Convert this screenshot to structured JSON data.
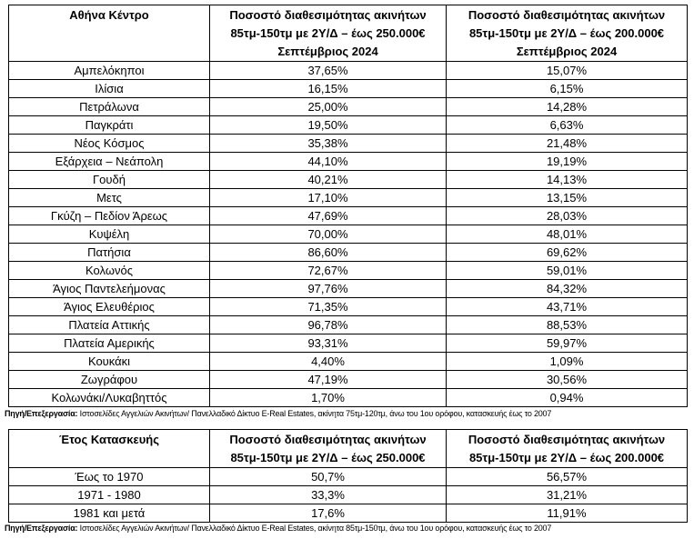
{
  "table1": {
    "headers": [
      "Αθήνα Κέντρο",
      "Ποσοστό διαθεσιμότητας ακινήτων 85τμ-150τμ με 2Υ/Δ – έως 250.000€ Σεπτέμβριος 2024",
      "Ποσοστό διαθεσιμότητας ακινήτων 85τμ-150τμ με 2Υ/Δ – έως 200.000€ Σεπτέμβριος 2024"
    ],
    "rows": [
      [
        "Αμπελόκηποι",
        "37,65%",
        "15,07%"
      ],
      [
        "Ιλίσια",
        "16,15%",
        "6,15%"
      ],
      [
        "Πετράλωνα",
        "25,00%",
        "14,28%"
      ],
      [
        "Παγκράτι",
        "19,50%",
        "6,63%"
      ],
      [
        "Νέος Κόσμος",
        "35,38%",
        "21,48%"
      ],
      [
        "Εξάρχεια – Νεάπολη",
        "44,10%",
        "19,19%"
      ],
      [
        "Γουδή",
        "40,21%",
        "14,13%"
      ],
      [
        "Μετς",
        "17,10%",
        "13,15%"
      ],
      [
        "Γκύζη – Πεδίον Άρεως",
        "47,69%",
        "28,03%"
      ],
      [
        "Κυψέλη",
        "70,00%",
        "48,01%"
      ],
      [
        "Πατήσια",
        "86,60%",
        "69,62%"
      ],
      [
        "Κολωνός",
        "72,67%",
        "59,01%"
      ],
      [
        "Άγιος Παντελεήμονας",
        "97,76%",
        "84,32%"
      ],
      [
        "Άγιος Ελευθέριος",
        "71,35%",
        "43,71%"
      ],
      [
        "Πλατεία Αττικής",
        "96,78%",
        "88,53%"
      ],
      [
        "Πλατεία Αμερικής",
        "93,31%",
        "59,97%"
      ],
      [
        "Κουκάκι",
        "4,40%",
        "1,09%"
      ],
      [
        "Ζωγράφου",
        "47,19%",
        "30,56%"
      ],
      [
        "Κολωνάκι/Λυκαβηττός",
        "1,70%",
        "0,94%"
      ]
    ],
    "source_label": "Πηγή/Επεξεργασία:",
    "source_text": " Ιστοσελίδες Αγγελιών Ακινήτων/ Πανελλαδικό Δίκτυο E-Real Estates, ακίνητα 75τμ-120τμ,  άνω του 1ου ορόφου, κατασκευής έως το 2007"
  },
  "table2": {
    "headers": [
      "Έτος Κατασκευής",
      "Ποσοστό διαθεσιμότητας ακινήτων 85τμ-150τμ με 2Υ/Δ – έως 250.000€",
      "Ποσοστό διαθεσιμότητας ακινήτων 85τμ-150τμ με 2Υ/Δ – έως 200.000€"
    ],
    "rows": [
      [
        "Έως το 1970",
        "50,7%",
        "56,57%"
      ],
      [
        "1971 - 1980",
        "33,3%",
        "31,21%"
      ],
      [
        "1981 και μετά",
        "17,6%",
        "11,91%"
      ]
    ],
    "source_label": "Πηγή/Επεξεργασία:",
    "source_text": " Ιστοσελίδες Αγγελιών Ακινήτων/ Πανελλαδικό Δίκτυο E-Real Estates, ακίνητα 85τμ-150τμ,  άνω του 1ου ορόφου, κατασκευής έως το 2007"
  }
}
